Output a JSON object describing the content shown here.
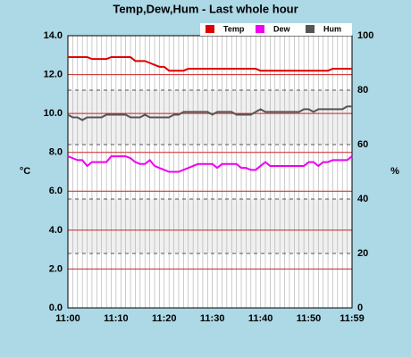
{
  "chart_data": {
    "type": "line",
    "title": "Temp,Dew,Hum - Last whole hour",
    "ylabel": "°C",
    "y2label": "%",
    "categories": [
      "11:00",
      null,
      null,
      null,
      null,
      null,
      null,
      null,
      null,
      null,
      "11:10",
      null,
      null,
      null,
      null,
      null,
      null,
      null,
      null,
      null,
      "11:20",
      null,
      null,
      null,
      null,
      null,
      null,
      null,
      null,
      null,
      "11:30",
      null,
      null,
      null,
      null,
      null,
      null,
      null,
      null,
      null,
      "11:40",
      null,
      null,
      null,
      null,
      null,
      null,
      null,
      null,
      null,
      "11:50",
      null,
      null,
      null,
      null,
      null,
      null,
      null,
      null,
      "11:59"
    ],
    "ylim": [
      0,
      14
    ],
    "yticks": [
      {
        "value": 0,
        "label": "0.0"
      },
      {
        "value": 2,
        "label": "2.0"
      },
      {
        "value": 4,
        "label": "4.0"
      },
      {
        "value": 6,
        "label": "6.0"
      },
      {
        "value": 8,
        "label": "8.0"
      },
      {
        "value": 10,
        "label": "10.0"
      },
      {
        "value": 12,
        "label": "12.0"
      },
      {
        "value": 14,
        "label": "14.0"
      }
    ],
    "y2lim": [
      0,
      100
    ],
    "y2ticks": [
      0,
      20,
      40,
      60,
      80,
      100
    ],
    "grid": true,
    "legend": "top-right",
    "series": [
      {
        "name": "Temp",
        "color": "#dd0000",
        "values": [
          12.9,
          12.9,
          12.9,
          12.9,
          12.9,
          12.8,
          12.8,
          12.8,
          12.8,
          12.9,
          12.9,
          12.9,
          12.9,
          12.9,
          12.7,
          12.7,
          12.7,
          12.6,
          12.5,
          12.4,
          12.4,
          12.2,
          12.2,
          12.2,
          12.2,
          12.3,
          12.3,
          12.3,
          12.3,
          12.3,
          12.3,
          12.3,
          12.3,
          12.3,
          12.3,
          12.3,
          12.3,
          12.3,
          12.3,
          12.3,
          12.2,
          12.2,
          12.2,
          12.2,
          12.2,
          12.2,
          12.2,
          12.2,
          12.2,
          12.2,
          12.2,
          12.2,
          12.2,
          12.2,
          12.2,
          12.3,
          12.3,
          12.3,
          12.3,
          12.3
        ]
      },
      {
        "name": "Dew",
        "color": "#ee00ee",
        "values": [
          7.8,
          7.7,
          7.6,
          7.6,
          7.3,
          7.5,
          7.5,
          7.5,
          7.5,
          7.8,
          7.8,
          7.8,
          7.8,
          7.7,
          7.5,
          7.4,
          7.4,
          7.6,
          7.3,
          7.2,
          7.1,
          7.0,
          7.0,
          7.0,
          7.1,
          7.2,
          7.3,
          7.4,
          7.4,
          7.4,
          7.4,
          7.2,
          7.4,
          7.4,
          7.4,
          7.4,
          7.2,
          7.2,
          7.1,
          7.1,
          7.3,
          7.5,
          7.3,
          7.3,
          7.3,
          7.3,
          7.3,
          7.3,
          7.3,
          7.3,
          7.5,
          7.5,
          7.3,
          7.5,
          7.5,
          7.6,
          7.6,
          7.6,
          7.6,
          7.8
        ]
      },
      {
        "name": "Hum",
        "color": "#555555",
        "axis": "y2",
        "values": [
          71,
          70,
          70,
          69,
          70,
          70,
          70,
          70,
          71,
          71,
          71,
          71,
          71,
          70,
          70,
          70,
          71,
          70,
          70,
          70,
          70,
          70,
          71,
          71,
          72,
          72,
          72,
          72,
          72,
          72,
          71,
          72,
          72,
          72,
          72,
          71,
          71,
          71,
          71,
          72,
          73,
          72,
          72,
          72,
          72,
          72,
          72,
          72,
          72,
          73,
          73,
          72,
          73,
          73,
          73,
          73,
          73,
          73,
          74,
          74
        ]
      }
    ]
  }
}
